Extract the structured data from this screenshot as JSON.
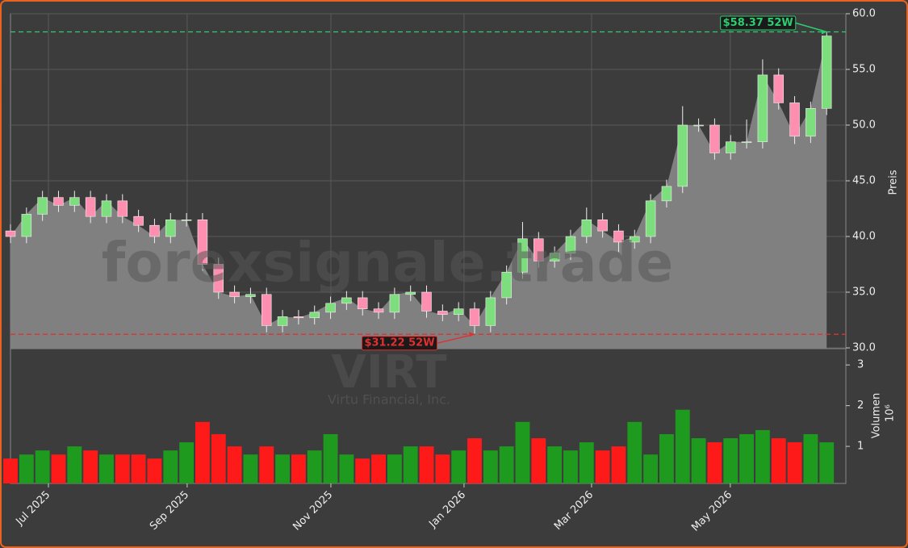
{
  "chart_data": {
    "type": "candlestick",
    "watermark": "forexsignale.trade",
    "symbol": "VIRT",
    "company": "Virtu Financial, Inc.",
    "ylabel": "Preis",
    "y2label": "Volumen",
    "y2unit": "10⁶",
    "x": [
      0,
      1,
      2,
      3,
      4,
      5,
      6,
      7,
      8,
      9,
      10,
      11,
      12,
      13,
      14,
      15,
      16,
      17,
      18,
      19,
      20,
      21,
      22,
      23,
      24,
      25,
      26,
      27,
      28,
      29,
      30,
      31,
      32,
      33,
      34,
      35,
      36,
      37,
      38,
      39,
      40,
      41,
      42,
      43,
      44,
      45,
      46,
      47,
      48,
      49,
      50,
      51
    ],
    "open": [
      40.5,
      40,
      42,
      43.5,
      42.8,
      43.5,
      41.8,
      43.2,
      41.8,
      41,
      40,
      41.5,
      41.5,
      37.5,
      35,
      34.6,
      34.8,
      32,
      32.8,
      32.7,
      33.2,
      34,
      34.5,
      33.5,
      33.2,
      34.8,
      35,
      33.3,
      33,
      33.5,
      32,
      34.5,
      36.8,
      39.8,
      37.8,
      38.5,
      40,
      41.5,
      40.5,
      39.5,
      40,
      43.2,
      44.5,
      50,
      50,
      47.5,
      48.5,
      48.5,
      54.5,
      52,
      49,
      51.5
    ],
    "high": [
      41.1,
      42.6,
      44.1,
      44.1,
      44.1,
      44.1,
      43.8,
      43.8,
      42.4,
      41.6,
      42.1,
      42.1,
      42.1,
      38.1,
      35.6,
      35.4,
      35.4,
      33.4,
      33.4,
      33.8,
      34.6,
      35.1,
      35.1,
      34.1,
      35.4,
      35.6,
      35.6,
      33.9,
      34.1,
      34.1,
      35.1,
      37.4,
      41.3,
      40.4,
      39.1,
      40.6,
      42.6,
      42.1,
      41.1,
      40.6,
      43.8,
      45.1,
      51.7,
      50.6,
      50.6,
      49.1,
      50.5,
      55.9,
      55.1,
      52.6,
      52.1,
      58.37
    ],
    "low": [
      39.4,
      39.4,
      41.4,
      42.2,
      42.2,
      41.2,
      41.2,
      41.2,
      40.4,
      39.4,
      39.4,
      40.9,
      36.9,
      34.4,
      34,
      34,
      31.4,
      31.4,
      32.1,
      32.1,
      32.6,
      33.4,
      32.9,
      32.6,
      32.6,
      34.2,
      32.7,
      32.4,
      32.4,
      31.22,
      31.4,
      33.9,
      36.2,
      37.2,
      37.2,
      37.9,
      39.4,
      39.9,
      38.6,
      38.9,
      39.4,
      42.6,
      43.9,
      49.4,
      46.9,
      46.9,
      47.9,
      47.9,
      51.4,
      48.3,
      48.4,
      50.9
    ],
    "close": [
      40,
      42,
      43.5,
      42.8,
      43.5,
      41.8,
      43.2,
      41.8,
      41,
      40,
      41.5,
      41.5,
      37.5,
      35,
      34.6,
      34.8,
      32,
      32.8,
      32.7,
      33.2,
      34,
      34.5,
      33.5,
      33.2,
      34.8,
      35,
      33.3,
      33,
      33.5,
      32,
      34.5,
      36.8,
      39.8,
      37.8,
      38.5,
      40,
      41.5,
      40.5,
      39.5,
      40,
      43.2,
      44.5,
      50,
      50,
      47.5,
      48.5,
      48.5,
      54.5,
      52,
      49,
      51.5,
      58
    ],
    "volume": [
      0.7,
      0.8,
      0.9,
      0.8,
      1.0,
      0.9,
      0.8,
      0.8,
      0.8,
      0.7,
      0.9,
      1.1,
      1.6,
      1.3,
      1.0,
      0.8,
      1.0,
      0.8,
      0.8,
      0.9,
      1.3,
      0.8,
      0.7,
      0.8,
      0.8,
      1.0,
      1.0,
      0.8,
      0.9,
      1.2,
      0.9,
      1.0,
      1.6,
      1.2,
      1.0,
      0.9,
      1.1,
      0.9,
      1.0,
      1.6,
      0.8,
      1.3,
      1.9,
      1.2,
      1.1,
      1.2,
      1.3,
      1.4,
      1.2,
      1.1,
      1.3,
      1.1
    ],
    "up_color": "#1e9a1e",
    "down_color": "#ff1a1a",
    "area_color": "#808080",
    "xlim": [
      0,
      52.2
    ],
    "xticks": [
      {
        "value": 2.37,
        "label": "Jul 2025"
      },
      {
        "value": 11.04,
        "label": "Sep 2025"
      },
      {
        "value": 20.02,
        "label": "Nov 2025"
      },
      {
        "value": 28.34,
        "label": "Jan 2026"
      },
      {
        "value": 36.31,
        "label": "Mar 2026"
      },
      {
        "value": 44.98,
        "label": "May 2026"
      }
    ],
    "ylim": [
      29.93,
      60
    ],
    "yticks": [
      {
        "value": 30,
        "label": "30.0"
      },
      {
        "value": 35,
        "label": "35.0"
      },
      {
        "value": 40,
        "label": "40.0"
      },
      {
        "value": 45,
        "label": "45.0"
      },
      {
        "value": 50,
        "label": "50.0"
      },
      {
        "value": 55,
        "label": "55.0"
      },
      {
        "value": 60,
        "label": "60.0"
      }
    ],
    "y2lim": [
      0.09,
      3.4
    ],
    "y2ticks": [
      1,
      2,
      3
    ],
    "grid": true,
    "annotations": [
      {
        "text": "$58.37 52W",
        "value": 58.37,
        "x": 51,
        "color": "#2ecc71"
      },
      {
        "text": "$31.22 52W",
        "value": 31.22,
        "x": 29,
        "color": "#e03030"
      }
    ]
  }
}
